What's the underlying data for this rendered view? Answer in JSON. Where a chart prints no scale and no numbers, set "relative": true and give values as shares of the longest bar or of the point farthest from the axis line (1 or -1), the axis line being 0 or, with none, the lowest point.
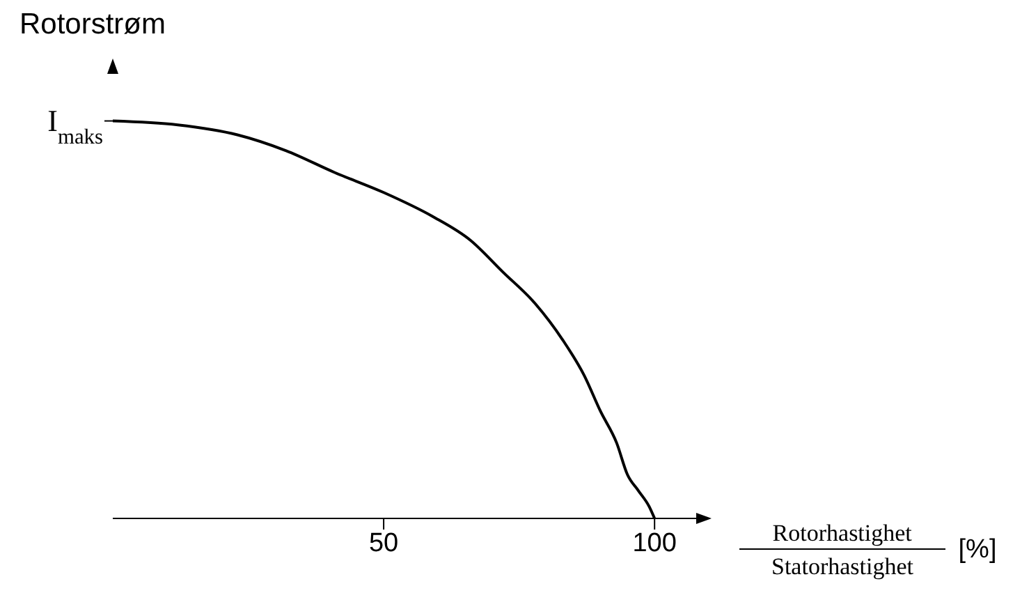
{
  "chart_data": {
    "type": "line",
    "title": "Rotorstrøm",
    "xlabel": "Rotorhastighet/Statorhastighet [%]",
    "relative": true,
    "xlim": [
      0,
      110
    ],
    "xticks": [
      50,
      100
    ],
    "marker": "none",
    "line_style": "solid",
    "annotations": [
      {
        "text": "I$_{maks}$",
        "x": 0,
        "y": 1
      }
    ],
    "series": [
      {
        "color": "#000000",
        "x": [
          0,
          12,
          23,
          32,
          41,
          50,
          59,
          66,
          72,
          78,
          83,
          87,
          90,
          93,
          95,
          97,
          99,
          100
        ],
        "values": [
          1,
          0.99,
          0.965,
          0.925,
          0.87,
          0.82,
          0.76,
          0.7,
          0.62,
          0.54,
          0.45,
          0.36,
          0.27,
          0.19,
          0.11,
          0.07,
          0.03,
          0
        ]
      }
    ]
  }
}
